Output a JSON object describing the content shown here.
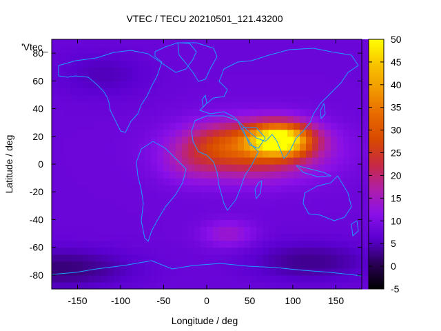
{
  "chart_data": {
    "type": "heatmap",
    "title": "VTEC / TECU 20210501_121.43200",
    "xlabel": "Longitude / deg",
    "ylabel": "Latitude / deg",
    "key_label": "'Vtec_",
    "xlim": [
      -180,
      180
    ],
    "ylim": [
      -90,
      90
    ],
    "x_ticks": [
      -150,
      -100,
      -50,
      0,
      50,
      100,
      150
    ],
    "y_ticks": [
      -80,
      -60,
      -40,
      -20,
      0,
      20,
      40,
      60,
      80
    ],
    "colorbar": {
      "min": -5,
      "max": 50,
      "ticks": [
        -5,
        0,
        5,
        10,
        15,
        20,
        25,
        30,
        35,
        40,
        45,
        50
      ],
      "palette": "black-purple-red-orange-yellow"
    },
    "coastline_color": "#1e9cff",
    "background_level": 8,
    "features": [
      {
        "lon": 85,
        "lat": 18,
        "sigma_lon": 25,
        "sigma_lat": 8,
        "value": 38
      },
      {
        "lon": 55,
        "lat": 10,
        "sigma_lon": 55,
        "sigma_lat": 14,
        "value": 18
      },
      {
        "lon": 15,
        "lat": 15,
        "sigma_lon": 30,
        "sigma_lat": 10,
        "value": 8
      },
      {
        "lon": -20,
        "lat": 0,
        "sigma_lon": 25,
        "sigma_lat": 10,
        "value": 4
      },
      {
        "lon": 25,
        "lat": -50,
        "sigma_lon": 22,
        "sigma_lat": 7,
        "value": 6
      },
      {
        "lon": -170,
        "lat": -75,
        "sigma_lon": 60,
        "sigma_lat": 10,
        "value": -6
      },
      {
        "lon": 120,
        "lat": -70,
        "sigma_lon": 50,
        "sigma_lat": 10,
        "value": -5
      },
      {
        "lon": -120,
        "lat": 65,
        "sigma_lon": 40,
        "sigma_lat": 12,
        "value": -3
      }
    ]
  }
}
